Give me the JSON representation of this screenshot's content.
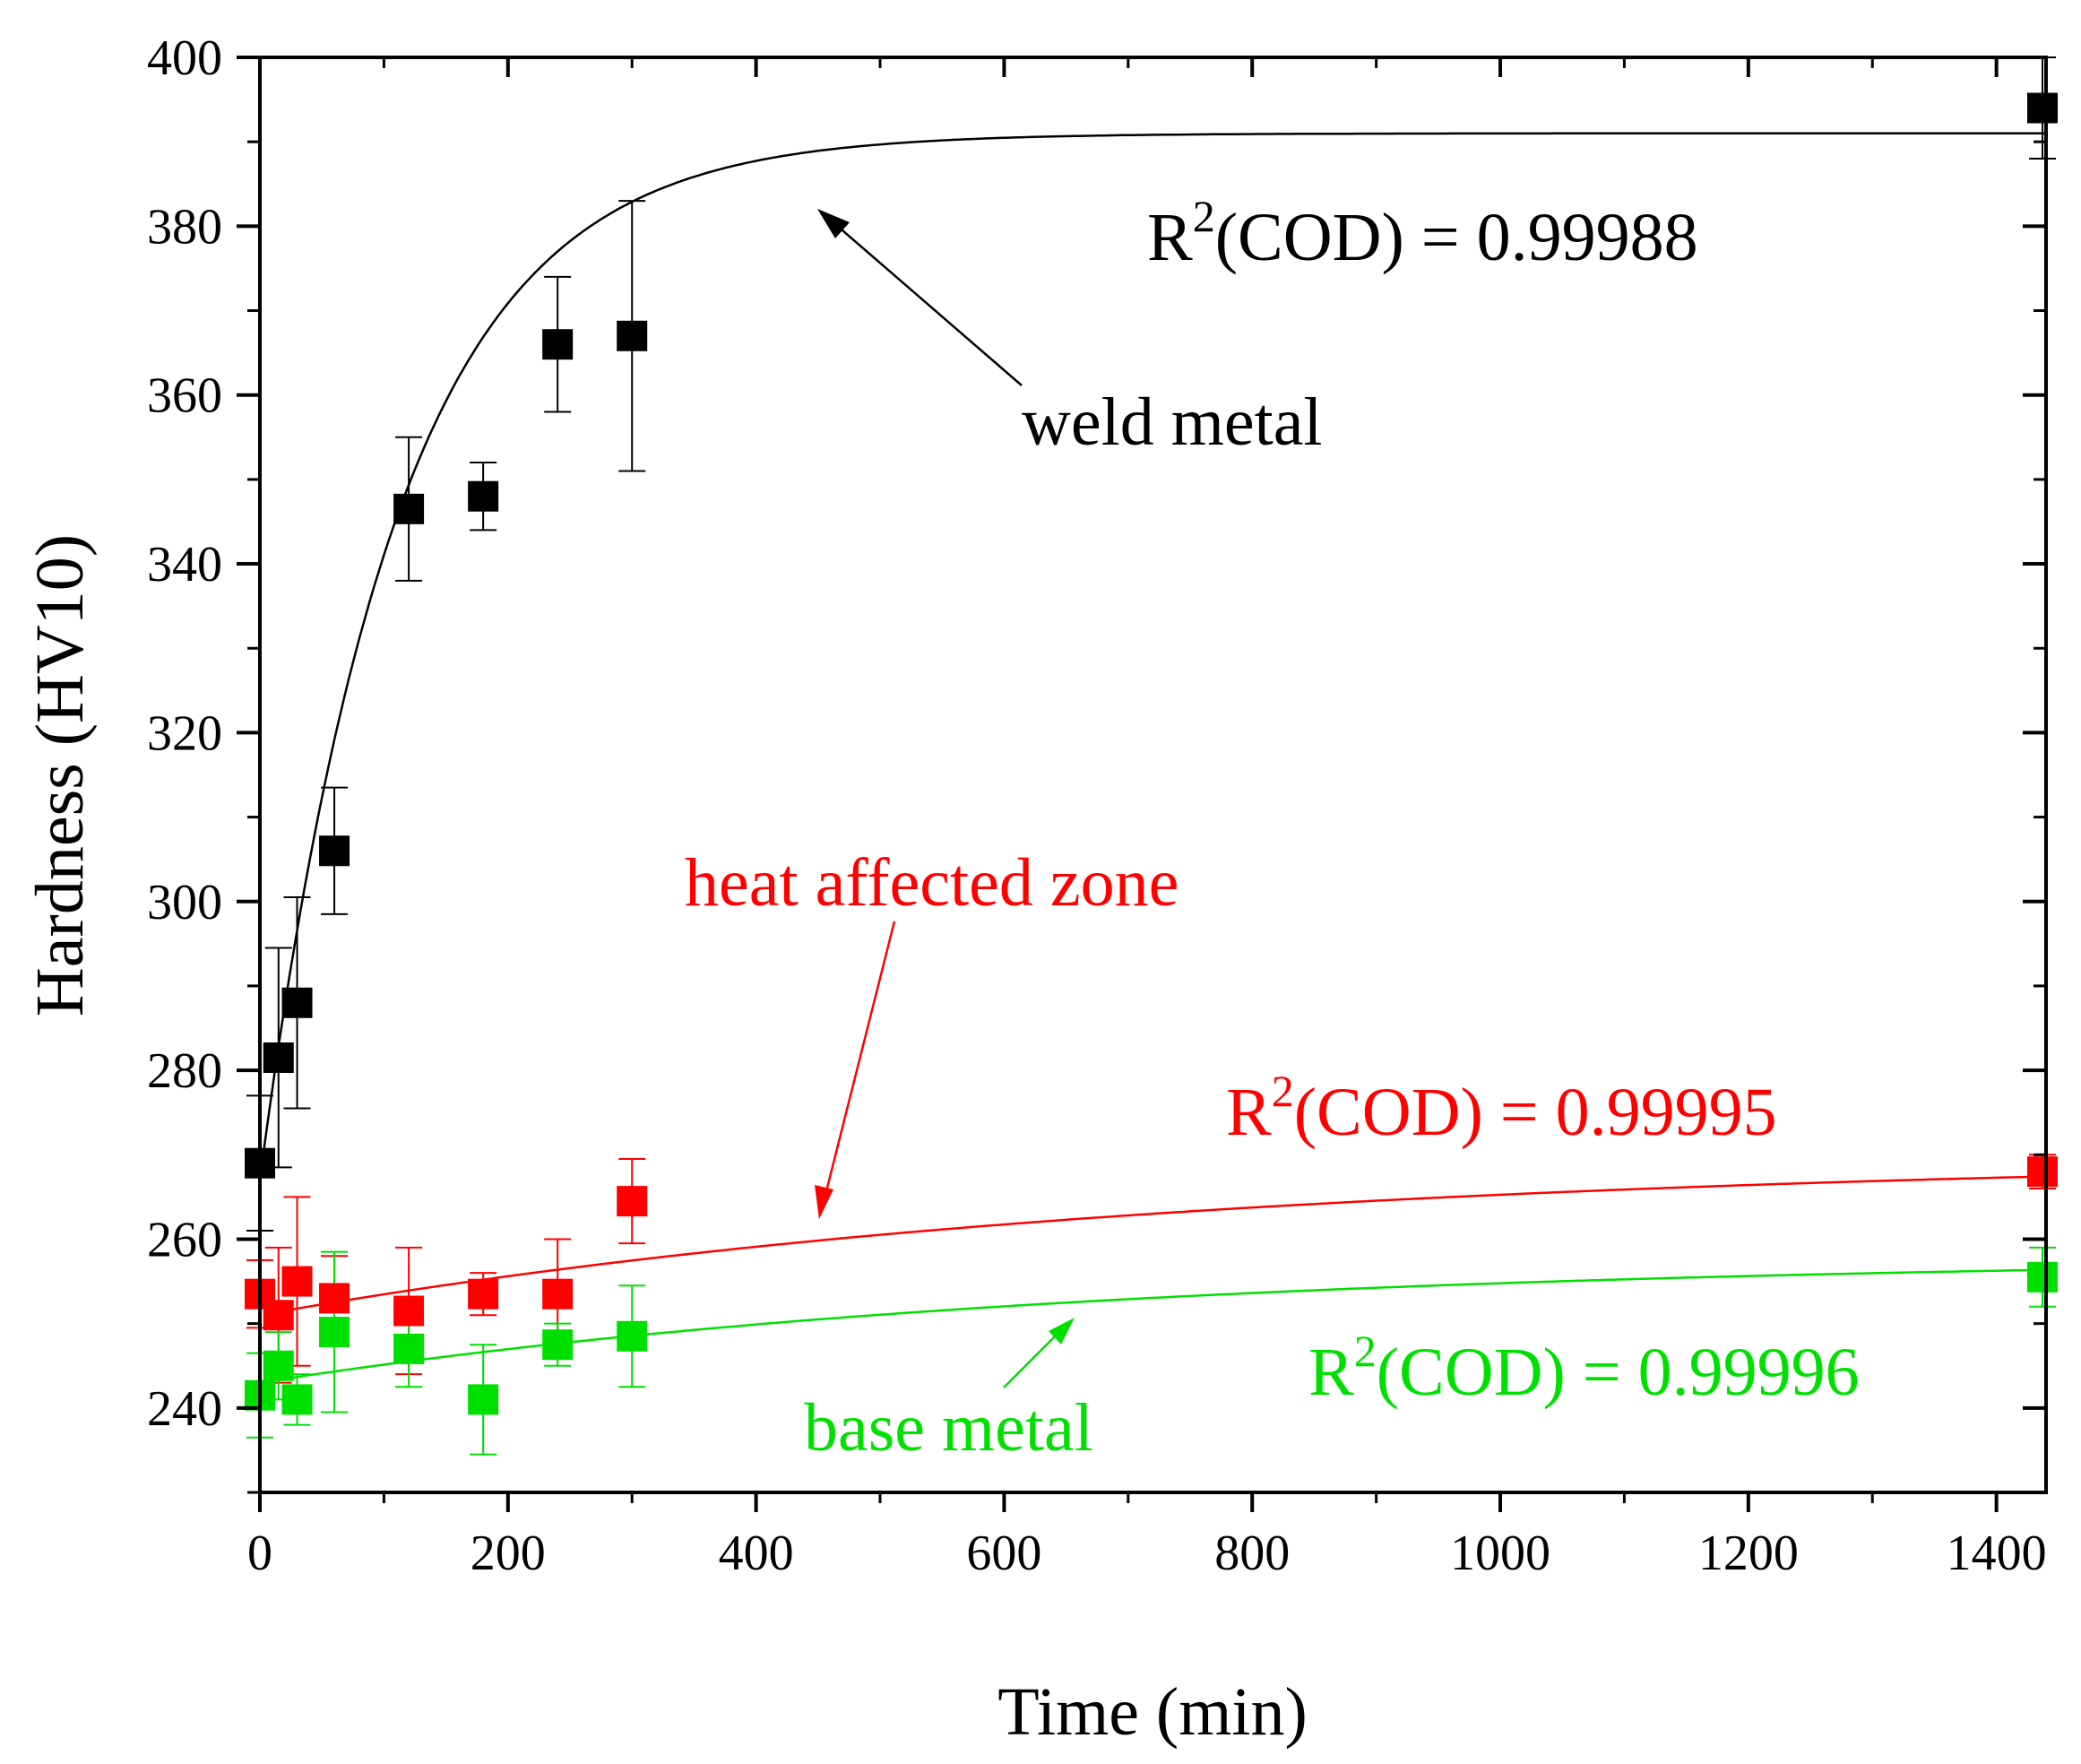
{
  "chart_data": {
    "type": "scatter",
    "title": "",
    "xlabel": "Time (min)",
    "ylabel": "Hardness (HV10)",
    "xlim": [
      0,
      1440
    ],
    "ylim": [
      230,
      400
    ],
    "x_ticks": [
      0,
      200,
      400,
      600,
      800,
      1000,
      1200,
      1400
    ],
    "y_ticks": [
      240,
      260,
      280,
      300,
      320,
      340,
      360,
      380,
      400
    ],
    "x_tick_labels": [
      "0",
      "200",
      "400",
      "600",
      "800",
      "1000",
      "1200",
      "1400"
    ],
    "y_tick_labels": [
      "240",
      "260",
      "280",
      "300",
      "320",
      "340",
      "360",
      "380",
      "400"
    ],
    "grid": false,
    "series": [
      {
        "name": "weld metal",
        "color": "#000000",
        "x": [
          0,
          15,
          30,
          60,
          120,
          180,
          240,
          300,
          1440
        ],
        "y": [
          269,
          281.5,
          288,
          306,
          346.5,
          348,
          366,
          367,
          394
        ],
        "err": [
          8,
          13,
          12.5,
          7.5,
          8.5,
          4,
          8,
          16,
          6
        ],
        "fit": {
          "type": "exp",
          "a": 391,
          "b": 124,
          "tau": 110,
          "r2_label": "R2(COD) = 0.99988"
        }
      },
      {
        "name": "heat affected zone",
        "color": "#ff0000",
        "x": [
          0,
          15,
          30,
          60,
          120,
          180,
          240,
          300,
          1440
        ],
        "y": [
          253.5,
          251,
          255,
          253,
          251.5,
          253.5,
          253.5,
          264.5,
          268
        ],
        "err": [
          4,
          8,
          10,
          5,
          7.5,
          2.5,
          6.5,
          5,
          2
        ],
        "fit": {
          "type": "exp",
          "a": 270,
          "b": 19,
          "tau": 720,
          "r2_label": "R2(COD) = 0.99995"
        }
      },
      {
        "name": "base metal",
        "color": "#00e000",
        "x": [
          0,
          15,
          30,
          60,
          120,
          180,
          240,
          300,
          1440
        ],
        "y": [
          241.5,
          245,
          241,
          249,
          247,
          241,
          247.5,
          248.5,
          255.5
        ],
        "err": [
          5,
          4,
          3,
          9.5,
          4.5,
          6.5,
          2.5,
          6,
          3.5
        ],
        "fit": {
          "type": "exp",
          "a": 258,
          "b": 15,
          "tau": 650,
          "r2_label": "R2(COD) = 0.99996"
        }
      }
    ],
    "annotations": [
      {
        "text": "weld metal",
        "color": "#000000"
      },
      {
        "text": "heat affected zone",
        "color": "#ff0000"
      },
      {
        "text": "base metal",
        "color": "#00e000"
      }
    ],
    "r2_labels": [
      {
        "prefix": "R",
        "sup": "2",
        "suffix": "(COD) = 0.99988",
        "color": "#000000"
      },
      {
        "prefix": "R",
        "sup": "2",
        "suffix": "(COD) = 0.99995",
        "color": "#ff0000"
      },
      {
        "prefix": "R",
        "sup": "2",
        "suffix": "(COD) = 0.99996",
        "color": "#00e000"
      }
    ]
  }
}
